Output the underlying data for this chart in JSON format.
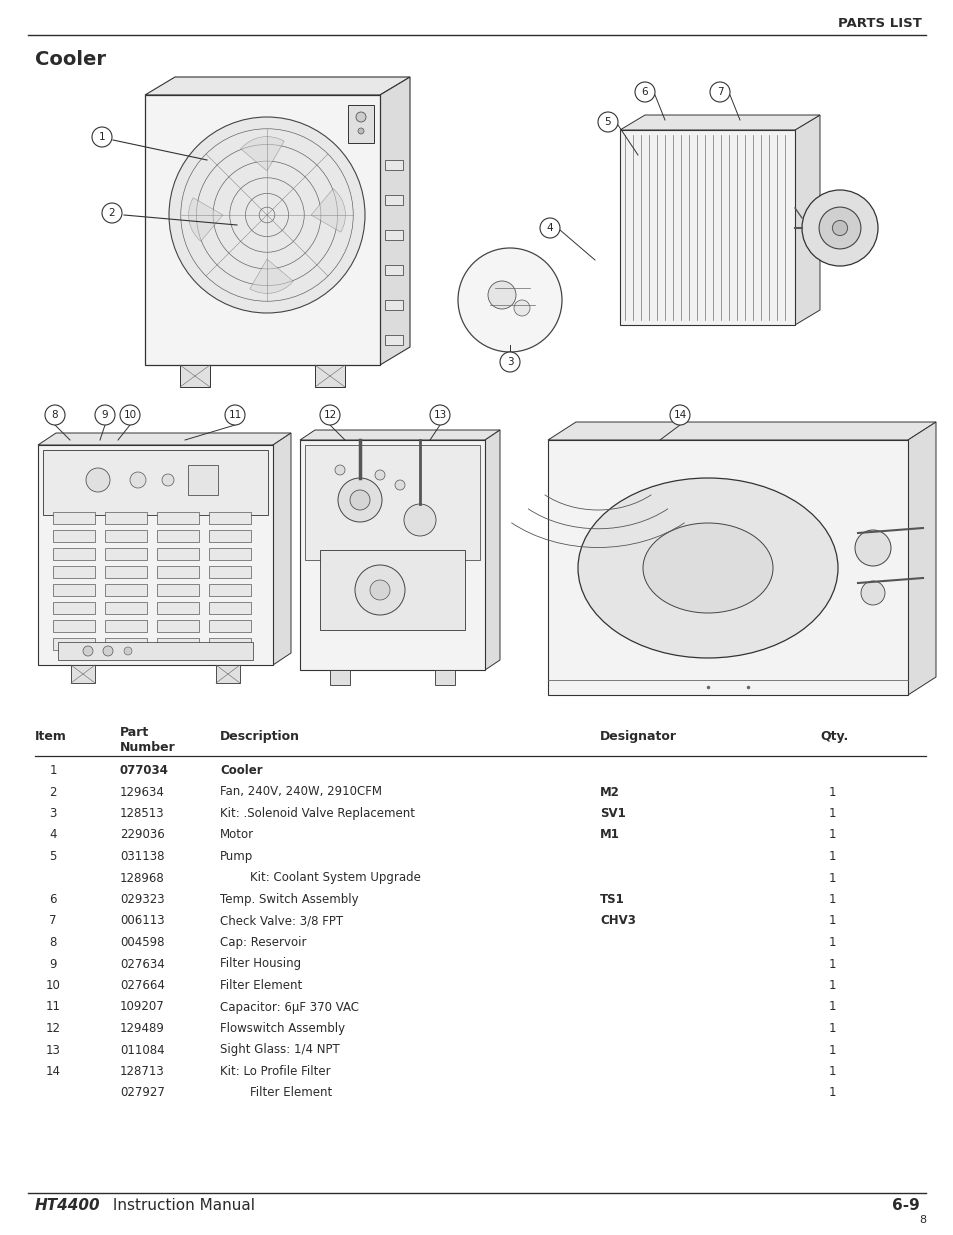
{
  "page_header": "PARTS LIST",
  "section_title": "Cooler",
  "footer_left_bold": "HT4400",
  "footer_left_normal": " Instruction Manual",
  "footer_right": "6-9",
  "footer_page_num": "8",
  "table_data": [
    [
      "1",
      "077034",
      "Cooler",
      "",
      ""
    ],
    [
      "2",
      "129634",
      "Fan, 240V, 240W, 2910CFM",
      "M2",
      "1"
    ],
    [
      "3",
      "128513",
      "Kit: .Solenoid Valve Replacement",
      "SV1",
      "1"
    ],
    [
      "4",
      "229036",
      "Motor",
      "M1",
      "1"
    ],
    [
      "5",
      "031138",
      "Pump",
      "",
      "1"
    ],
    [
      "",
      "128968",
      "        Kit: Coolant System Upgrade",
      "",
      "1"
    ],
    [
      "6",
      "029323",
      "Temp. Switch Assembly",
      "TS1",
      "1"
    ],
    [
      "7",
      "006113",
      "Check Valve: 3/8 FPT",
      "CHV3",
      "1"
    ],
    [
      "8",
      "004598",
      "Cap: Reservoir",
      "",
      "1"
    ],
    [
      "9",
      "027634",
      "Filter Housing",
      "",
      "1"
    ],
    [
      "10",
      "027664",
      "Filter Element",
      "",
      "1"
    ],
    [
      "11",
      "109207",
      "Capacitor: 6μF 370 VAC",
      "",
      "1"
    ],
    [
      "12",
      "129489",
      "Flowswitch Assembly",
      "",
      "1"
    ],
    [
      "13",
      "011084",
      "Sight Glass: 1/4 NPT",
      "",
      "1"
    ],
    [
      "14",
      "128713",
      "Kit: Lo Profile Filter",
      "",
      "1"
    ],
    [
      "",
      "027927",
      "        Filter Element",
      "",
      "1"
    ]
  ],
  "bold_part_numbers": [
    "077034"
  ],
  "bold_designators": [
    "M2",
    "SV1",
    "M1",
    "TS1",
    "CHV3"
  ],
  "bg_color": "#ffffff",
  "text_color": "#2b2b2b",
  "line_color": "#2b2b2b"
}
